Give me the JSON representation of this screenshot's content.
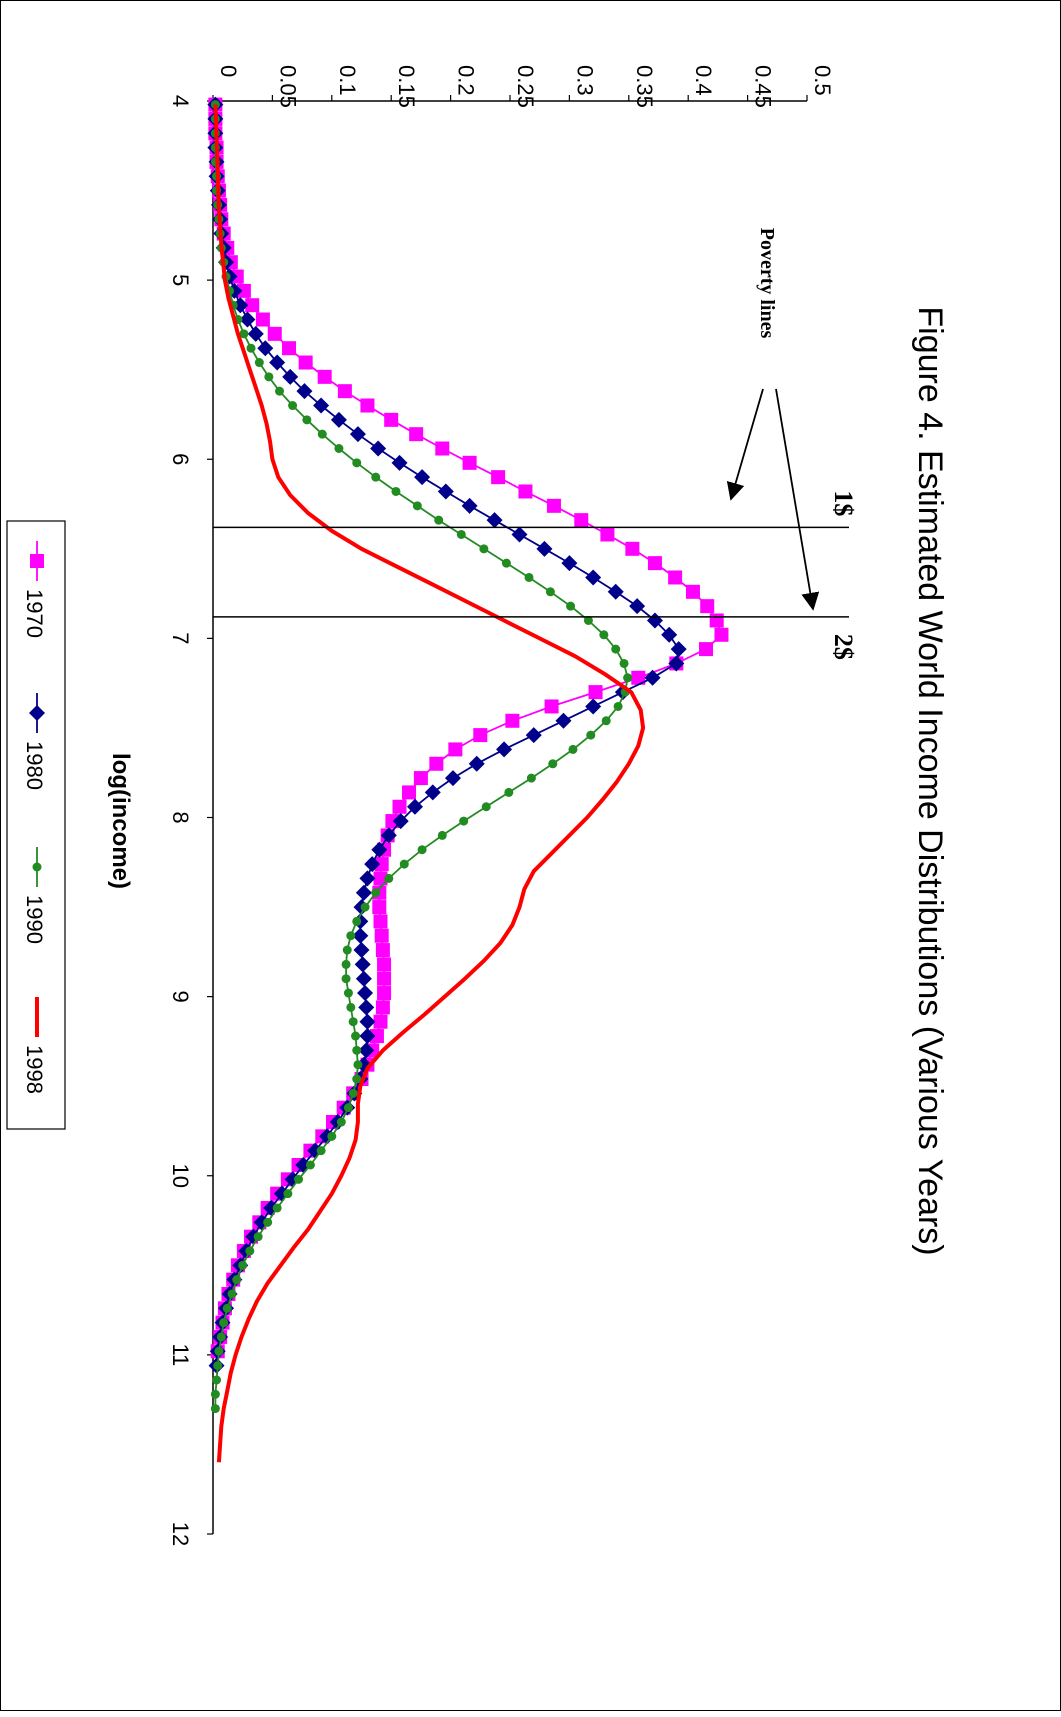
{
  "chart_data": {
    "type": "line",
    "title": "Figure 4. Estimated World Income Distributions (Various Years)",
    "xlabel": "log(income)",
    "ylabel": "",
    "xlim": [
      4,
      12
    ],
    "ylim": [
      0,
      0.5
    ],
    "x_ticks": [
      "4",
      "5",
      "6",
      "7",
      "8",
      "9",
      "10",
      "11",
      "12"
    ],
    "y_ticks": [
      "0",
      "0.05",
      "0.1",
      "0.15",
      "0.2",
      "0.25",
      "0.3",
      "0.35",
      "0.4",
      "0.45",
      "0.5"
    ],
    "orientation": "rotated 90 degrees clockwise (x axis runs top-to-bottom, y axis left-to-right)",
    "legend_position": "bottom-left",
    "annotations": {
      "poverty_lines_label": "Poverty lines",
      "one_dollar_label": "1$",
      "two_dollar_label": "2$",
      "one_dollar_x": 6.38,
      "two_dollar_x": 6.88
    },
    "series": [
      {
        "name": "1970",
        "color": "#ff00ff",
        "marker": "square",
        "x": [
          4.02,
          4.1,
          4.18,
          4.26,
          4.34,
          4.42,
          4.5,
          4.58,
          4.66,
          4.74,
          4.82,
          4.9,
          4.98,
          5.06,
          5.14,
          5.22,
          5.3,
          5.38,
          5.46,
          5.54,
          5.62,
          5.7,
          5.78,
          5.86,
          5.94,
          6.02,
          6.1,
          6.18,
          6.26,
          6.34,
          6.42,
          6.5,
          6.58,
          6.66,
          6.74,
          6.82,
          6.9,
          6.98,
          7.06,
          7.14,
          7.22,
          7.3,
          7.38,
          7.46,
          7.54,
          7.62,
          7.7,
          7.78,
          7.86,
          7.94,
          8.02,
          8.1,
          8.18,
          8.26,
          8.34,
          8.42,
          8.5,
          8.58,
          8.66,
          8.74,
          8.82,
          8.9,
          8.98,
          9.06,
          9.14,
          9.22,
          9.3,
          9.38,
          9.46,
          9.54,
          9.62,
          9.7,
          9.78,
          9.86,
          9.94,
          10.02,
          10.1,
          10.18,
          10.26,
          10.34,
          10.42,
          10.5,
          10.58,
          10.66,
          10.74,
          10.82,
          10.9,
          10.98
        ],
        "values": [
          0.002,
          0.002,
          0.002,
          0.003,
          0.003,
          0.004,
          0.005,
          0.006,
          0.007,
          0.009,
          0.012,
          0.015,
          0.02,
          0.026,
          0.033,
          0.042,
          0.052,
          0.064,
          0.078,
          0.094,
          0.111,
          0.13,
          0.15,
          0.171,
          0.193,
          0.216,
          0.24,
          0.263,
          0.287,
          0.31,
          0.332,
          0.353,
          0.372,
          0.389,
          0.404,
          0.416,
          0.424,
          0.428,
          0.415,
          0.39,
          0.358,
          0.322,
          0.285,
          0.252,
          0.225,
          0.204,
          0.188,
          0.175,
          0.165,
          0.157,
          0.151,
          0.147,
          0.144,
          0.142,
          0.141,
          0.14,
          0.14,
          0.141,
          0.142,
          0.143,
          0.144,
          0.144,
          0.144,
          0.143,
          0.141,
          0.138,
          0.134,
          0.13,
          0.125,
          0.118,
          0.11,
          0.101,
          0.092,
          0.082,
          0.072,
          0.063,
          0.054,
          0.046,
          0.039,
          0.032,
          0.026,
          0.021,
          0.017,
          0.013,
          0.01,
          0.008,
          0.006,
          0.004
        ]
      },
      {
        "name": "1980",
        "color": "#00008b",
        "marker": "diamond",
        "x": [
          4.02,
          4.1,
          4.18,
          4.26,
          4.34,
          4.42,
          4.5,
          4.58,
          4.66,
          4.74,
          4.82,
          4.9,
          4.98,
          5.06,
          5.14,
          5.22,
          5.3,
          5.38,
          5.46,
          5.54,
          5.62,
          5.7,
          5.78,
          5.86,
          5.94,
          6.02,
          6.1,
          6.18,
          6.26,
          6.34,
          6.42,
          6.5,
          6.58,
          6.66,
          6.74,
          6.82,
          6.9,
          6.98,
          7.06,
          7.14,
          7.22,
          7.3,
          7.38,
          7.46,
          7.54,
          7.62,
          7.7,
          7.78,
          7.86,
          7.94,
          8.02,
          8.1,
          8.18,
          8.26,
          8.34,
          8.42,
          8.5,
          8.58,
          8.66,
          8.74,
          8.82,
          8.9,
          8.98,
          9.06,
          9.14,
          9.22,
          9.3,
          9.38,
          9.46,
          9.54,
          9.62,
          9.7,
          9.78,
          9.86,
          9.94,
          10.02,
          10.1,
          10.18,
          10.26,
          10.34,
          10.42,
          10.5,
          10.58,
          10.66,
          10.74,
          10.82,
          10.9,
          10.98,
          11.06
        ],
        "values": [
          0.002,
          0.002,
          0.002,
          0.002,
          0.003,
          0.003,
          0.004,
          0.005,
          0.006,
          0.007,
          0.009,
          0.011,
          0.014,
          0.018,
          0.023,
          0.029,
          0.036,
          0.044,
          0.054,
          0.065,
          0.077,
          0.091,
          0.106,
          0.122,
          0.139,
          0.157,
          0.176,
          0.196,
          0.216,
          0.237,
          0.258,
          0.279,
          0.3,
          0.32,
          0.339,
          0.357,
          0.372,
          0.384,
          0.392,
          0.39,
          0.37,
          0.345,
          0.32,
          0.295,
          0.27,
          0.245,
          0.222,
          0.202,
          0.185,
          0.17,
          0.158,
          0.148,
          0.14,
          0.134,
          0.13,
          0.127,
          0.125,
          0.124,
          0.124,
          0.125,
          0.126,
          0.127,
          0.128,
          0.129,
          0.13,
          0.13,
          0.129,
          0.127,
          0.124,
          0.119,
          0.113,
          0.105,
          0.096,
          0.086,
          0.076,
          0.067,
          0.058,
          0.049,
          0.041,
          0.034,
          0.028,
          0.023,
          0.018,
          0.014,
          0.011,
          0.008,
          0.006,
          0.004,
          0.003
        ]
      },
      {
        "name": "1990",
        "color": "#228b22",
        "marker": "circle",
        "x": [
          4.02,
          4.1,
          4.18,
          4.26,
          4.34,
          4.42,
          4.5,
          4.58,
          4.66,
          4.74,
          4.82,
          4.9,
          4.98,
          5.06,
          5.14,
          5.22,
          5.3,
          5.38,
          5.46,
          5.54,
          5.62,
          5.7,
          5.78,
          5.86,
          5.94,
          6.02,
          6.1,
          6.18,
          6.26,
          6.34,
          6.42,
          6.5,
          6.58,
          6.66,
          6.74,
          6.82,
          6.9,
          6.98,
          7.06,
          7.14,
          7.22,
          7.3,
          7.38,
          7.46,
          7.54,
          7.62,
          7.7,
          7.78,
          7.86,
          7.94,
          8.02,
          8.1,
          8.18,
          8.26,
          8.34,
          8.42,
          8.5,
          8.58,
          8.66,
          8.74,
          8.82,
          8.9,
          8.98,
          9.06,
          9.14,
          9.22,
          9.3,
          9.38,
          9.46,
          9.54,
          9.62,
          9.7,
          9.78,
          9.86,
          9.94,
          10.02,
          10.1,
          10.18,
          10.26,
          10.34,
          10.42,
          10.5,
          10.58,
          10.66,
          10.74,
          10.82,
          10.9,
          10.98,
          11.06,
          11.14,
          11.22,
          11.3
        ],
        "values": [
          0.002,
          0.002,
          0.002,
          0.002,
          0.002,
          0.003,
          0.003,
          0.004,
          0.005,
          0.006,
          0.007,
          0.009,
          0.011,
          0.014,
          0.017,
          0.021,
          0.026,
          0.032,
          0.039,
          0.047,
          0.056,
          0.067,
          0.079,
          0.092,
          0.106,
          0.121,
          0.137,
          0.154,
          0.172,
          0.19,
          0.209,
          0.228,
          0.247,
          0.266,
          0.284,
          0.301,
          0.316,
          0.329,
          0.339,
          0.346,
          0.349,
          0.347,
          0.341,
          0.331,
          0.318,
          0.303,
          0.286,
          0.268,
          0.249,
          0.23,
          0.211,
          0.193,
          0.176,
          0.161,
          0.148,
          0.137,
          0.128,
          0.121,
          0.116,
          0.113,
          0.112,
          0.112,
          0.114,
          0.116,
          0.118,
          0.12,
          0.121,
          0.122,
          0.121,
          0.118,
          0.114,
          0.108,
          0.1,
          0.091,
          0.082,
          0.072,
          0.063,
          0.054,
          0.046,
          0.038,
          0.031,
          0.025,
          0.02,
          0.016,
          0.012,
          0.009,
          0.007,
          0.005,
          0.004,
          0.003,
          0.002,
          0.002
        ]
      },
      {
        "name": "1998",
        "color": "#ff0000",
        "marker": "none",
        "x": [
          4.02,
          4.2,
          4.4,
          4.6,
          4.8,
          5.0,
          5.1,
          5.2,
          5.3,
          5.4,
          5.5,
          5.6,
          5.7,
          5.8,
          5.9,
          6.0,
          6.1,
          6.2,
          6.3,
          6.4,
          6.5,
          6.6,
          6.7,
          6.8,
          6.9,
          7.0,
          7.1,
          7.2,
          7.3,
          7.4,
          7.5,
          7.6,
          7.7,
          7.8,
          7.9,
          8.0,
          8.1,
          8.2,
          8.3,
          8.4,
          8.5,
          8.6,
          8.7,
          8.8,
          8.9,
          9.0,
          9.1,
          9.2,
          9.3,
          9.4,
          9.5,
          9.6,
          9.7,
          9.8,
          9.9,
          10.0,
          10.1,
          10.2,
          10.3,
          10.4,
          10.5,
          10.6,
          10.7,
          10.8,
          10.9,
          11.0,
          11.1,
          11.2,
          11.3,
          11.4,
          11.5,
          11.6
        ],
        "values": [
          0.002,
          0.003,
          0.004,
          0.005,
          0.007,
          0.01,
          0.013,
          0.017,
          0.021,
          0.026,
          0.031,
          0.036,
          0.041,
          0.045,
          0.048,
          0.05,
          0.055,
          0.065,
          0.08,
          0.1,
          0.125,
          0.155,
          0.185,
          0.215,
          0.245,
          0.275,
          0.305,
          0.33,
          0.352,
          0.36,
          0.362,
          0.358,
          0.35,
          0.34,
          0.328,
          0.315,
          0.3,
          0.285,
          0.27,
          0.262,
          0.258,
          0.252,
          0.242,
          0.228,
          0.212,
          0.195,
          0.178,
          0.16,
          0.143,
          0.13,
          0.124,
          0.122,
          0.122,
          0.12,
          0.115,
          0.108,
          0.1,
          0.09,
          0.08,
          0.068,
          0.057,
          0.046,
          0.037,
          0.03,
          0.024,
          0.019,
          0.015,
          0.012,
          0.009,
          0.007,
          0.006,
          0.005
        ]
      }
    ]
  }
}
